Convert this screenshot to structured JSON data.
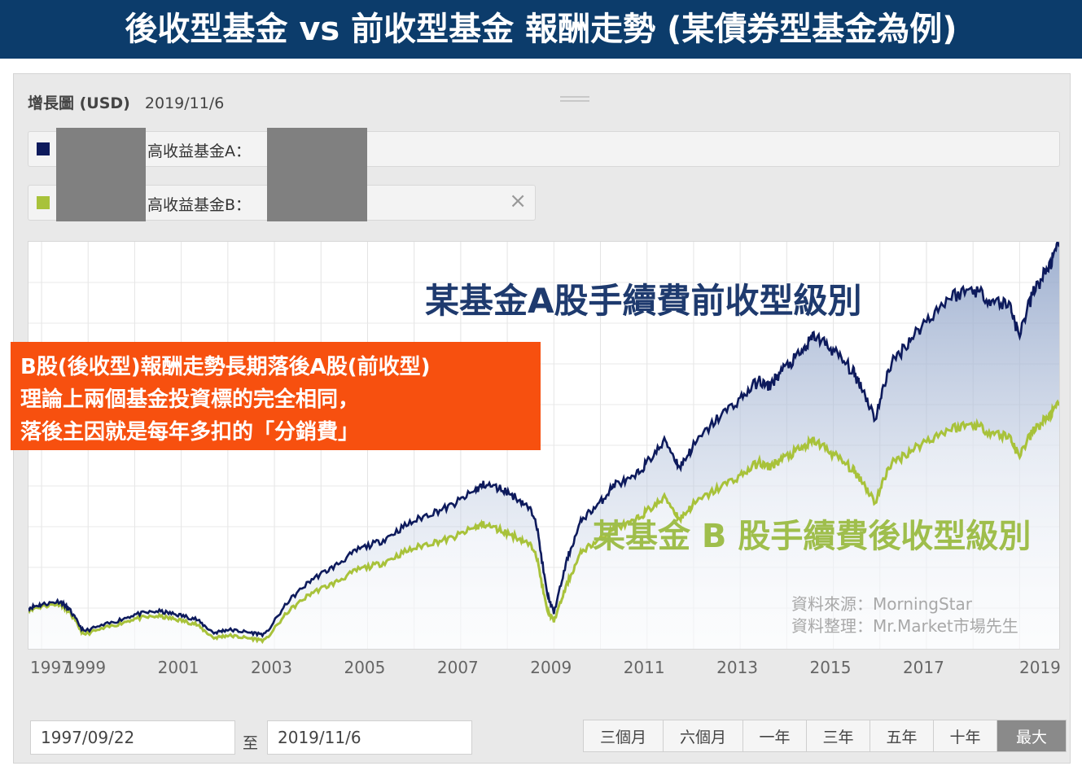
{
  "banner": {
    "title": "後收型基金 vs 前收型基金 報酬走勢 (某債券型基金為例)"
  },
  "header": {
    "title": "增長圖 (USD)",
    "date": "2019/11/6"
  },
  "legend": [
    {
      "name": "高收益基金A：",
      "color": "#0d1a5c"
    },
    {
      "name": "高收益基金B：",
      "color": "#a8c23a",
      "close": "×"
    }
  ],
  "annotations": {
    "a_label": "某基金A股手續費前收型級別",
    "b_label": "某基金 B 股手續費後收型級別",
    "source_1": "資料來源：MorningStar",
    "source_2": "資料整理：Mr.Market市場先生"
  },
  "note": {
    "line1": "B股(後收型)報酬走勢長期落後A股(前收型)",
    "line2": "理論上兩個基金投資標的完全相同，",
    "line3": "落後主因就是每年多扣的「分銷費」"
  },
  "range": {
    "from": "1997/09/22",
    "to_label": "至",
    "to": "2019/11/6"
  },
  "range_buttons": [
    {
      "label": "三個月",
      "active": false
    },
    {
      "label": "六個月",
      "active": false
    },
    {
      "label": "一年",
      "active": false
    },
    {
      "label": "三年",
      "active": false
    },
    {
      "label": "五年",
      "active": false
    },
    {
      "label": "十年",
      "active": false
    },
    {
      "label": "最大",
      "active": true
    }
  ],
  "chart_data": {
    "type": "line",
    "grid": true,
    "x_tick_labels": [
      "1997",
      "1999",
      "2001",
      "2003",
      "2005",
      "2007",
      "2009",
      "2011",
      "2013",
      "2015",
      "2017",
      "2019"
    ],
    "series": [
      {
        "name": "高收益基金A",
        "color": "#0d1a5c",
        "x": [
          1997.72,
          1998.0,
          1998.4,
          1998.6,
          1998.9,
          1999.5,
          2000.0,
          2000.5,
          2000.9,
          2001.3,
          2001.7,
          2002.0,
          2002.4,
          2002.8,
          2003.3,
          2003.8,
          2004.3,
          2004.8,
          2005.3,
          2005.8,
          2006.3,
          2006.8,
          2007.3,
          2007.5,
          2007.9,
          2008.3,
          2008.6,
          2008.85,
          2009.0,
          2009.3,
          2009.6,
          2010.0,
          2010.3,
          2010.7,
          2011.0,
          2011.4,
          2011.7,
          2012.0,
          2012.5,
          2013.0,
          2013.4,
          2013.6,
          2013.9,
          2014.3,
          2014.6,
          2015.0,
          2015.4,
          2015.6,
          2015.9,
          2016.2,
          2016.6,
          2017.0,
          2017.5,
          2018.0,
          2018.4,
          2018.8,
          2018.98,
          2019.3,
          2019.6,
          2019.85
        ],
        "y": [
          1.44,
          1.48,
          1.52,
          1.42,
          1.16,
          1.26,
          1.36,
          1.4,
          1.36,
          1.31,
          1.14,
          1.18,
          1.15,
          1.12,
          1.52,
          1.78,
          1.94,
          2.14,
          2.24,
          2.42,
          2.56,
          2.66,
          2.84,
          2.92,
          2.86,
          2.72,
          2.54,
          1.62,
          1.38,
          2.05,
          2.5,
          2.7,
          2.92,
          2.98,
          3.18,
          3.44,
          3.12,
          3.38,
          3.7,
          3.94,
          4.16,
          4.08,
          4.28,
          4.48,
          4.7,
          4.52,
          4.28,
          4.1,
          3.7,
          4.32,
          4.62,
          4.88,
          5.16,
          5.26,
          5.12,
          5.06,
          4.7,
          5.22,
          5.5,
          5.76
        ]
      },
      {
        "name": "高收益基金B",
        "color": "#a8c23a",
        "x": [
          1997.72,
          1998.0,
          1998.4,
          1998.6,
          1998.9,
          1999.5,
          2000.0,
          2000.5,
          2000.9,
          2001.3,
          2001.7,
          2002.0,
          2002.4,
          2002.8,
          2003.3,
          2003.8,
          2004.3,
          2004.8,
          2005.3,
          2005.8,
          2006.3,
          2006.8,
          2007.3,
          2007.5,
          2007.9,
          2008.3,
          2008.6,
          2008.85,
          2009.0,
          2009.3,
          2009.6,
          2010.0,
          2010.3,
          2010.7,
          2011.0,
          2011.4,
          2011.7,
          2012.0,
          2012.5,
          2013.0,
          2013.4,
          2013.6,
          2013.9,
          2014.3,
          2014.6,
          2015.0,
          2015.4,
          2015.6,
          2015.9,
          2016.2,
          2016.6,
          2017.0,
          2017.5,
          2018.0,
          2018.4,
          2018.8,
          2018.98,
          2019.3,
          2019.6,
          2019.85
        ],
        "y": [
          1.42,
          1.46,
          1.49,
          1.39,
          1.12,
          1.22,
          1.31,
          1.34,
          1.3,
          1.25,
          1.08,
          1.11,
          1.08,
          1.05,
          1.4,
          1.62,
          1.74,
          1.9,
          1.97,
          2.11,
          2.21,
          2.27,
          2.4,
          2.44,
          2.36,
          2.26,
          2.14,
          1.42,
          1.28,
          1.75,
          2.12,
          2.26,
          2.4,
          2.46,
          2.6,
          2.76,
          2.5,
          2.68,
          2.86,
          3.02,
          3.18,
          3.12,
          3.22,
          3.34,
          3.44,
          3.28,
          3.1,
          2.98,
          2.7,
          3.14,
          3.3,
          3.44,
          3.58,
          3.64,
          3.54,
          3.48,
          3.26,
          3.56,
          3.72,
          3.86
        ]
      }
    ],
    "xlim": [
      1997.72,
      2019.85
    ],
    "ylim": [
      0.95,
      5.82
    ]
  }
}
